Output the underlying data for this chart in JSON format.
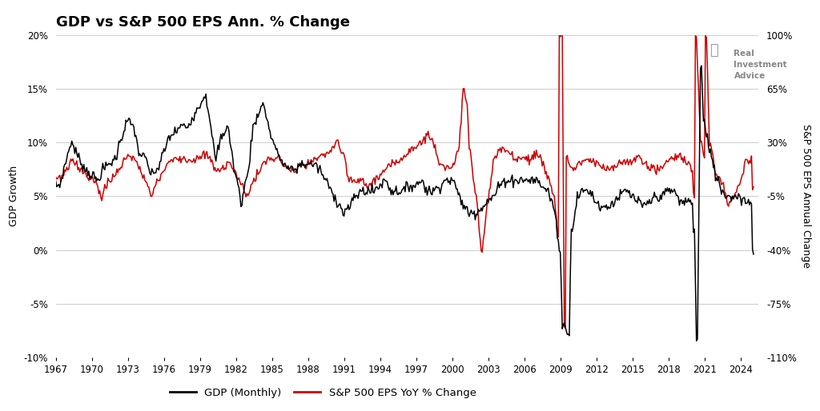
{
  "title": "GDP vs S&P 500 EPS Ann. % Change",
  "left_ylabel": "GDP Growth",
  "right_ylabel": "S&P 500 EPS Annual Change",
  "legend_items": [
    "GDP (Monthly)",
    "S&P 500 EPS YoY % Change"
  ],
  "legend_colors": [
    "#000000",
    "#cc0000"
  ],
  "gdp_color": "#000000",
  "eps_color": "#cc0000",
  "left_yticks": [
    20,
    15,
    10,
    5,
    0,
    -5,
    -10
  ],
  "right_yticks": [
    100,
    65,
    30,
    -5,
    -40,
    -75,
    -110
  ],
  "left_ylim": [
    -10,
    20
  ],
  "right_ylim": [
    -110,
    100
  ],
  "xlim_start": 1967.0,
  "xlim_end": 2025.5,
  "xticks": [
    1967,
    1970,
    1973,
    1976,
    1979,
    1982,
    1985,
    1988,
    1991,
    1994,
    1997,
    2000,
    2003,
    2006,
    2009,
    2012,
    2015,
    2018,
    2021,
    2024
  ],
  "background_color": "#ffffff",
  "grid_color": "#cccccc",
  "title_fontsize": 13,
  "axis_label_fontsize": 9,
  "tick_fontsize": 8.5,
  "watermark_text": "Real\nInvestment\nAdvice"
}
